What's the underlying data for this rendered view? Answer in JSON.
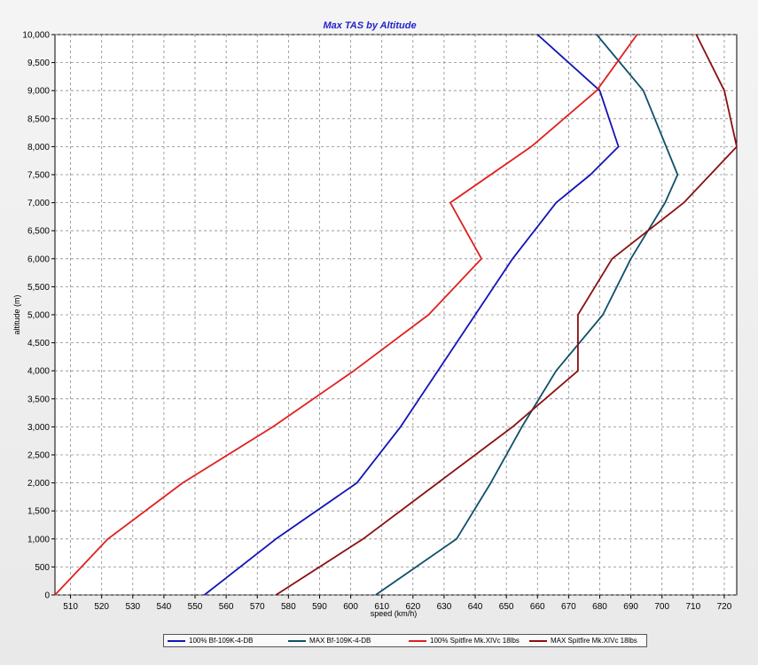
{
  "chart_data": {
    "type": "line",
    "title": "Max TAS by Altitude",
    "xlabel": "speed (km/h)",
    "ylabel": "altitude (m)",
    "xlim": [
      505,
      724
    ],
    "ylim": [
      0,
      10000
    ],
    "xticks": [
      510,
      520,
      530,
      540,
      550,
      560,
      570,
      580,
      590,
      600,
      610,
      620,
      630,
      640,
      650,
      660,
      670,
      680,
      690,
      700,
      710,
      720
    ],
    "yticks": [
      0,
      500,
      1000,
      1500,
      2000,
      2500,
      3000,
      3500,
      4000,
      4500,
      5000,
      5500,
      6000,
      6500,
      7000,
      7500,
      8000,
      8500,
      9000,
      9500,
      10000
    ],
    "ytick_labels": [
      "0",
      "500",
      "1,000",
      "1,500",
      "2,000",
      "2,500",
      "3,000",
      "3,500",
      "4,000",
      "4,500",
      "5,000",
      "5,500",
      "6,000",
      "6,500",
      "7,000",
      "7,500",
      "8,000",
      "8,500",
      "9,000",
      "9,500",
      "10,000"
    ],
    "grid": true,
    "legend_position": "bottom",
    "series": [
      {
        "name": "100% Bf-109K-4-DB",
        "color": "#1414b4",
        "points": [
          [
            553,
            0
          ],
          [
            576,
            1000
          ],
          [
            602,
            2000
          ],
          [
            616,
            3000
          ],
          [
            634,
            4500
          ],
          [
            652,
            6000
          ],
          [
            666,
            7000
          ],
          [
            677,
            7500
          ],
          [
            686,
            8000
          ],
          [
            680,
            9000
          ],
          [
            660,
            10000
          ]
        ]
      },
      {
        "name": "MAX Bf-109K-4-DB",
        "color": "#0f5068",
        "points": [
          [
            608,
            0
          ],
          [
            634,
            1000
          ],
          [
            645,
            2000
          ],
          [
            655,
            3000
          ],
          [
            666,
            4000
          ],
          [
            681,
            5000
          ],
          [
            690,
            6000
          ],
          [
            701,
            7000
          ],
          [
            705,
            7500
          ],
          [
            694,
            9000
          ],
          [
            679,
            10000
          ]
        ]
      },
      {
        "name": "100% Spitfire Mk.XIVc 18lbs",
        "color": "#e02020",
        "points": [
          [
            505,
            0
          ],
          [
            522,
            1000
          ],
          [
            546,
            2000
          ],
          [
            575,
            3000
          ],
          [
            601,
            4000
          ],
          [
            625,
            5000
          ],
          [
            642,
            6000
          ],
          [
            632,
            7000
          ],
          [
            658,
            8000
          ],
          [
            679,
            9000
          ],
          [
            692,
            10000
          ]
        ]
      },
      {
        "name": "MAX Spitfire Mk.XIVc 18lbs",
        "color": "#8b1010",
        "points": [
          [
            576,
            0
          ],
          [
            604,
            1000
          ],
          [
            628,
            2000
          ],
          [
            652,
            3000
          ],
          [
            673,
            4000
          ],
          [
            673,
            5000
          ],
          [
            684,
            6000
          ],
          [
            707,
            7000
          ],
          [
            724,
            8000
          ],
          [
            720,
            9000
          ],
          [
            711,
            10000
          ]
        ]
      }
    ]
  }
}
